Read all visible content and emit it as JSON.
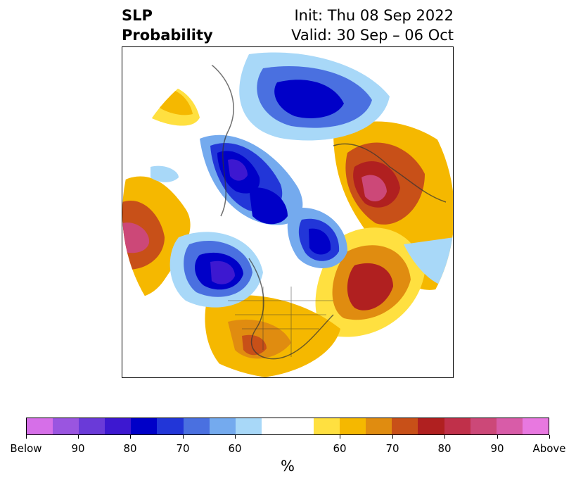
{
  "title": {
    "left_line1": "SLP",
    "left_line2": "Probability",
    "init": "Init: Thu 08 Sep 2022",
    "valid": "Valid: 30 Sep – 06 Oct"
  },
  "colorbar": {
    "unit": "%",
    "colors": [
      "#d66fe8",
      "#9a55e0",
      "#6a3ad8",
      "#3d18d0",
      "#0000c8",
      "#2236d8",
      "#4a70e0",
      "#74aaee",
      "#a8d8f8",
      "#ffffff",
      "#ffe040",
      "#f5b800",
      "#e08c10",
      "#c85018",
      "#b02020",
      "#c0304a",
      "#cc4878",
      "#d85ca8",
      "#e878e0"
    ],
    "tick_labels": [
      "Below",
      "90",
      "80",
      "70",
      "60",
      "60",
      "70",
      "80",
      "90",
      "Above"
    ]
  },
  "map": {
    "legend_colors": {
      "below_high": "#0000c8",
      "below_mid": "#4a70e0",
      "below_low": "#a8d8f8",
      "above_low": "#ffe040",
      "above_mid": "#e08c10",
      "above_high": "#b02020",
      "above_extreme": "#cc4878"
    }
  }
}
